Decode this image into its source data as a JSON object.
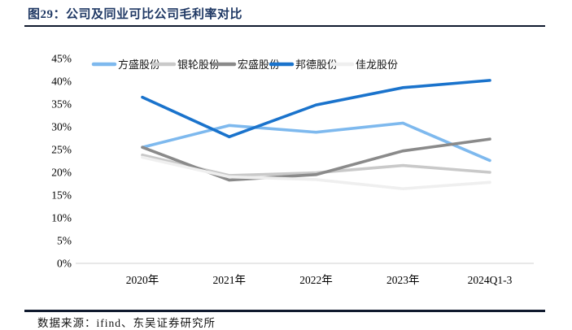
{
  "header": {
    "title": "图29：公司及同业可比公司毛利率对比"
  },
  "footer": {
    "source": "数据来源：ifind、东吴证券研究所"
  },
  "colors": {
    "title_text": "#1f3864",
    "rule": "#101a2e",
    "axis_line": "#d9d9d9",
    "tick_text": "#000000"
  },
  "chart_data": {
    "type": "line",
    "title": "公司及同业可比公司毛利率对比",
    "categories": [
      "2020年",
      "2021年",
      "2022年",
      "2023年",
      "2024Q1-3"
    ],
    "series": [
      {
        "name": "方盛股份",
        "color": "#7eb9ee",
        "values": [
          25.5,
          30.3,
          28.8,
          30.8,
          22.6
        ]
      },
      {
        "name": "银轮股份",
        "color": "#c9c9c9",
        "values": [
          23.8,
          19.3,
          19.9,
          21.5,
          20.0
        ]
      },
      {
        "name": "宏盛股份",
        "color": "#8a8a8a",
        "values": [
          25.5,
          18.3,
          19.5,
          24.7,
          27.3
        ]
      },
      {
        "name": "邦德股份",
        "color": "#1a73cc",
        "values": [
          36.5,
          27.8,
          34.8,
          38.6,
          40.2
        ]
      },
      {
        "name": "佳龙股份",
        "color": "#efefef",
        "values": [
          23.3,
          19.0,
          18.4,
          16.4,
          17.8
        ]
      }
    ],
    "ylabel": "",
    "xlabel": "",
    "ylim": [
      0,
      45
    ],
    "ytick_step": 5,
    "ytick_suffix": "%",
    "legend_position": "top",
    "grid": false
  }
}
